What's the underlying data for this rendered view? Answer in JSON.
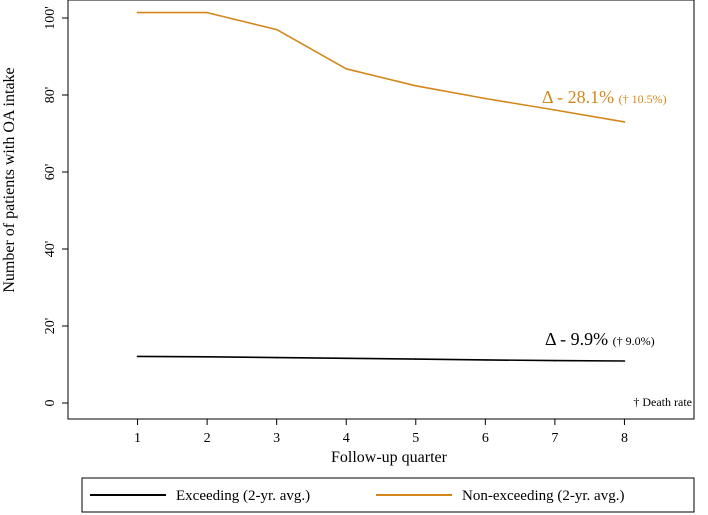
{
  "chart_data": {
    "type": "line",
    "title": "",
    "xlabel": "Follow-up quarter",
    "ylabel": "Number of patients with OA intake",
    "x": [
      1,
      2,
      3,
      4,
      5,
      6,
      7,
      8
    ],
    "x_ticks": [
      "1",
      "2",
      "3",
      "4",
      "5",
      "6",
      "7",
      "8"
    ],
    "xlim": [
      0,
      9
    ],
    "y_ticks": [
      "0",
      "20'",
      "40'",
      "60'",
      "80'",
      "100'"
    ],
    "y_tick_values": [
      0,
      20,
      40,
      60,
      80,
      100
    ],
    "ylim": [
      0,
      100
    ],
    "grid": false,
    "series": [
      {
        "name": "Exceeding (2-yr. avg.)",
        "color": "#000000",
        "values": [
          12.1,
          12.0,
          11.8,
          11.6,
          11.4,
          11.2,
          11.0,
          10.9
        ],
        "annotation": {
          "delta": "Δ -  9.9%",
          "death": "(† 9.0%)"
        }
      },
      {
        "name": "Non-exceeding (2-yr. avg.)",
        "color": "#d4861a",
        "values": [
          101.4,
          101.4,
          97.0,
          86.8,
          82.4,
          79.1,
          76.1,
          73.0
        ],
        "annotation": {
          "delta": "Δ - 28.1%",
          "death": "(† 10.5%)"
        }
      }
    ],
    "footnote": "† Death rate",
    "legend_position": "bottom"
  }
}
